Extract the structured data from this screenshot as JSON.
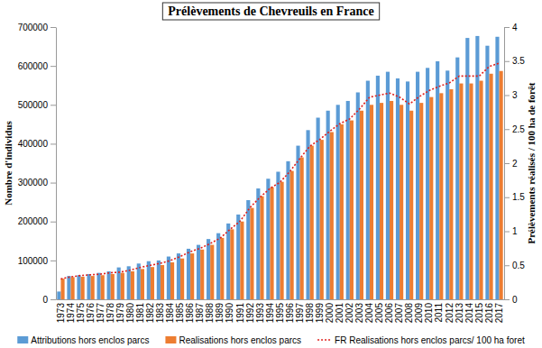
{
  "chart_data": {
    "type": "bar",
    "title": "Prélèvements de Chevreuils en France",
    "y_label": "Nombre d'individus",
    "y2_label": "Prélèvements réalisés / 100 ha de forêt",
    "categories": [
      "1973",
      "1974",
      "1975",
      "1976",
      "1977",
      "1978",
      "1979",
      "1980",
      "1981",
      "1982",
      "1983",
      "1984",
      "1985",
      "1986",
      "1987",
      "1988",
      "1989",
      "1990",
      "1991",
      "1992",
      "1993",
      "1994",
      "1995",
      "1996",
      "1997",
      "1998",
      "1999",
      "2000",
      "2001",
      "2002",
      "2003",
      "2004",
      "2005",
      "2006",
      "2007",
      "2008",
      "2009",
      "2010",
      "2011",
      "2012",
      "2013",
      "2014",
      "2015",
      "2016",
      "2017"
    ],
    "series": [
      {
        "name": "Attributions hors enclos parcs",
        "type": "bar",
        "color": "#5b9bd5",
        "values": [
          20000,
          60000,
          62000,
          65000,
          68000,
          72000,
          82000,
          85000,
          92000,
          98000,
          100000,
          110000,
          118000,
          130000,
          140000,
          155000,
          170000,
          195000,
          218000,
          255000,
          285000,
          310000,
          328000,
          355000,
          395000,
          435000,
          467000,
          485000,
          500000,
          510000,
          532000,
          562000,
          575000,
          585000,
          568000,
          560000,
          585000,
          595000,
          612000,
          588000,
          622000,
          672000,
          677000,
          652000,
          675000
        ]
      },
      {
        "name": "Realisations hors enclos parcs",
        "type": "bar",
        "color": "#ed7d31",
        "values": [
          53000,
          57000,
          58000,
          60000,
          62000,
          65000,
          68000,
          72000,
          78000,
          83000,
          88000,
          95000,
          105000,
          118000,
          128000,
          140000,
          158000,
          180000,
          200000,
          235000,
          265000,
          288000,
          302000,
          330000,
          365000,
          395000,
          410000,
          430000,
          450000,
          460000,
          485000,
          500000,
          505000,
          510000,
          500000,
          485000,
          505000,
          520000,
          530000,
          540000,
          555000,
          555000,
          562000,
          580000,
          587000
        ]
      },
      {
        "name": "FR Realisations hors enclos parcs/ 100 ha foret",
        "type": "line",
        "axis": "y2",
        "color": "#e0201b",
        "line_style": "dotted",
        "values": [
          0.3,
          0.33,
          0.35,
          0.36,
          0.37,
          0.39,
          0.4,
          0.43,
          0.47,
          0.5,
          0.53,
          0.57,
          0.63,
          0.7,
          0.75,
          0.82,
          0.9,
          1.03,
          1.15,
          1.35,
          1.5,
          1.63,
          1.72,
          1.88,
          2.07,
          2.25,
          2.35,
          2.47,
          2.58,
          2.65,
          2.8,
          2.97,
          3.0,
          3.03,
          2.97,
          2.87,
          2.98,
          3.07,
          3.13,
          3.18,
          3.28,
          3.28,
          3.28,
          3.42,
          3.47
        ]
      }
    ],
    "ylim": [
      0,
      700000
    ],
    "yticks": [
      0,
      100000,
      200000,
      300000,
      400000,
      500000,
      600000,
      700000
    ],
    "y2lim": [
      0,
      4
    ],
    "y2ticks": [
      0,
      0.5,
      1,
      1.5,
      2,
      2.5,
      3,
      3.5,
      4
    ],
    "grid": false,
    "legend": "bottom"
  }
}
